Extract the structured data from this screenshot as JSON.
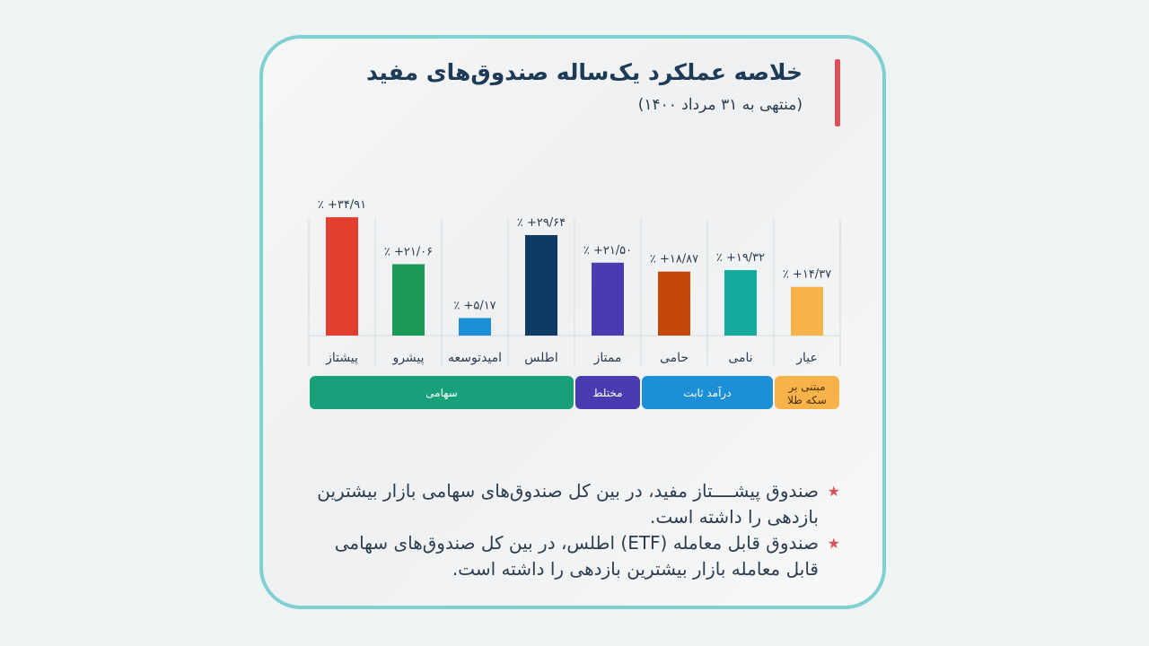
{
  "header": {
    "title": "خلاصه عملکرد یک‌ساله صندوق‌های مفید",
    "subtitle": "(منتهی به ۳۱ مرداد ۱۴۰۰)"
  },
  "chart_data": {
    "type": "bar",
    "categories": [
      "پیشتاز",
      "پیشرو",
      "امیدتوسعه",
      "اطلس",
      "ممتاز",
      "حامی",
      "نامی",
      "عیار"
    ],
    "values": [
      34.91,
      21.06,
      5.17,
      29.64,
      21.5,
      18.87,
      19.32,
      14.37
    ],
    "value_labels": [
      "٪ +۳۴/۹۱",
      "٪ +۲۱/۰۶",
      "٪ +۵/۱۷",
      "٪ +۲۹/۶۴",
      "٪ +۲۱/۵۰",
      "٪ +۱۸/۸۷",
      "٪ +۱۹/۳۲",
      "٪ +۱۴/۳۷"
    ],
    "colors": [
      "#e23e2f",
      "#1b9a57",
      "#1d8fd6",
      "#0e3a63",
      "#4b3bb0",
      "#c2480b",
      "#16aa9e",
      "#f7b34a"
    ],
    "ylim": [
      0,
      36
    ],
    "groups": [
      {
        "label": "سهامی",
        "span": [
          0,
          3
        ],
        "color": "#17a07a"
      },
      {
        "label": "مختلط",
        "span": [
          4,
          4
        ],
        "color": "#4b3bb0"
      },
      {
        "label": "درآمد ثابت",
        "span": [
          5,
          6
        ],
        "color": "#1d8fd6"
      },
      {
        "label": "مبتنی بر سکه طلا",
        "span": [
          7,
          7
        ],
        "color": "#f7b34a"
      }
    ]
  },
  "notes": [
    "صندوق پیشــــتاز مفید، در بین کل صندوق‌های سهامی بازار بیشترین بازدهی را داشته است.",
    "صندوق قابل معامله (ETF) اطلس، در بین کل صندوق‌های سهامی قابل معامله بازار بیشترین بازدهی را داشته است."
  ]
}
